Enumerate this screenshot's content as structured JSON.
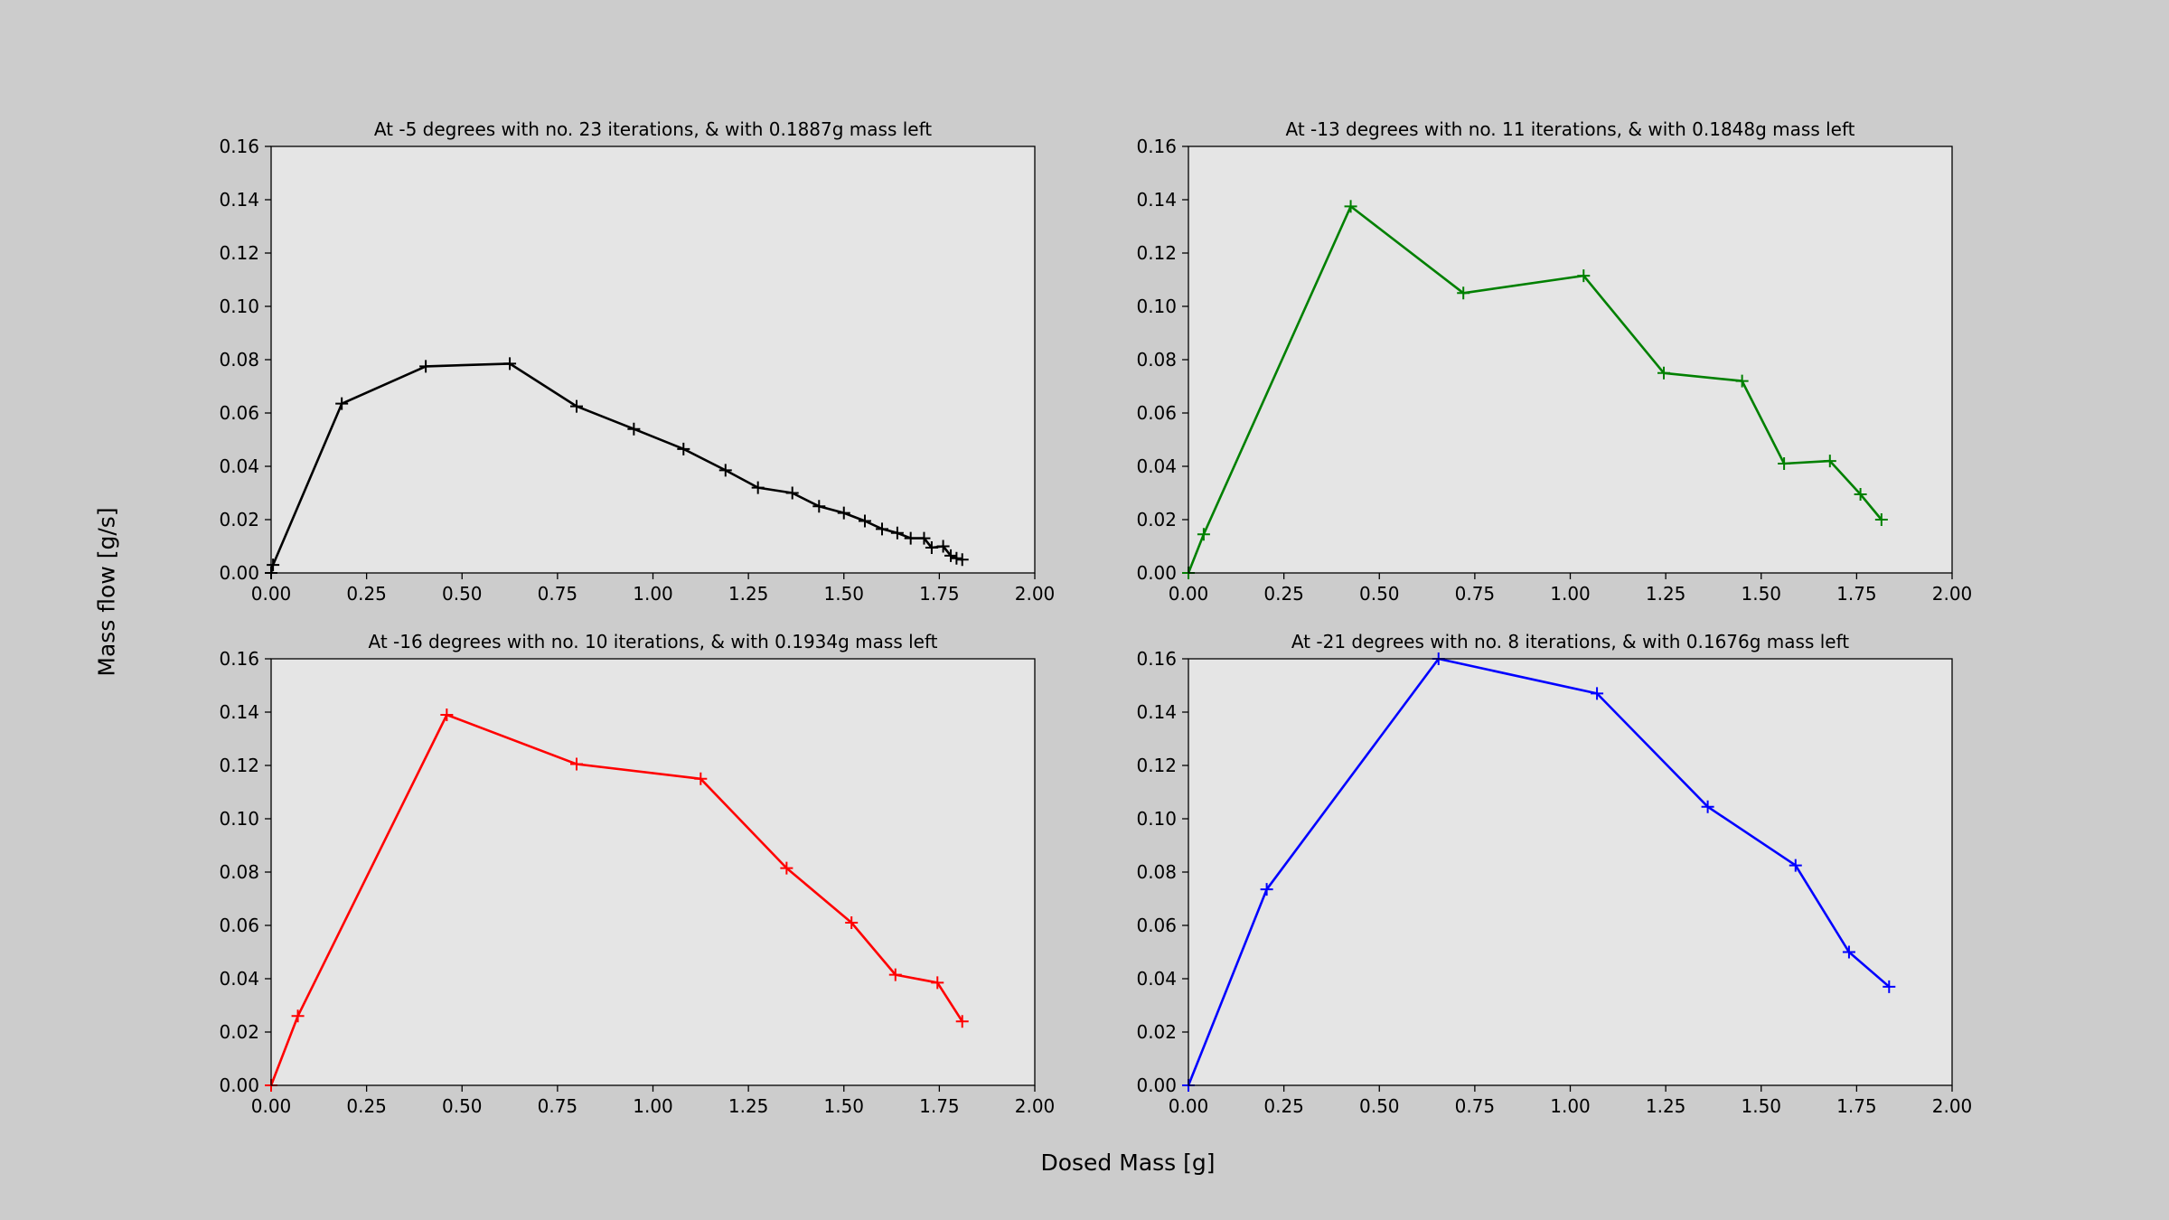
{
  "figure": {
    "xlabel": "Dosed Mass [g]",
    "ylabel": "Mass flow [g/s]",
    "background": "#cccccc",
    "axes_background": "#e5e5e5"
  },
  "chart_data": [
    {
      "type": "line",
      "title": "At -5 degrees with no. 23 iterations, & with 0.1887g mass left",
      "xlim": [
        0,
        2.0
      ],
      "ylim": [
        0,
        0.16
      ],
      "xticks": [
        "0.00",
        "0.25",
        "0.50",
        "0.75",
        "1.00",
        "1.25",
        "1.50",
        "1.75",
        "2.00"
      ],
      "yticks": [
        "0.00",
        "0.02",
        "0.04",
        "0.06",
        "0.08",
        "0.10",
        "0.12",
        "0.14",
        "0.16"
      ],
      "marker": "+",
      "color": "#000000",
      "x": [
        0.0,
        0.005,
        0.185,
        0.405,
        0.625,
        0.8,
        0.95,
        1.08,
        1.19,
        1.275,
        1.365,
        1.435,
        1.5,
        1.555,
        1.6,
        1.64,
        1.675,
        1.71,
        1.73,
        1.76,
        1.78,
        1.795,
        1.81
      ],
      "y": [
        0.0,
        0.003,
        0.0635,
        0.0775,
        0.0785,
        0.0625,
        0.054,
        0.0465,
        0.0385,
        0.032,
        0.03,
        0.025,
        0.0225,
        0.0195,
        0.0165,
        0.015,
        0.013,
        0.013,
        0.0095,
        0.01,
        0.0065,
        0.0055,
        0.005
      ]
    },
    {
      "type": "line",
      "title": "At -13 degrees with no. 11 iterations, & with 0.1848g mass left",
      "xlim": [
        0,
        2.0
      ],
      "ylim": [
        0,
        0.16
      ],
      "xticks": [
        "0.00",
        "0.25",
        "0.50",
        "0.75",
        "1.00",
        "1.25",
        "1.50",
        "1.75",
        "2.00"
      ],
      "yticks": [
        "0.00",
        "0.02",
        "0.04",
        "0.06",
        "0.08",
        "0.10",
        "0.12",
        "0.14",
        "0.16"
      ],
      "marker": "+",
      "color": "#008000",
      "x": [
        0.0,
        0.04,
        0.425,
        0.72,
        1.035,
        1.245,
        1.45,
        1.56,
        1.68,
        1.76,
        1.815
      ],
      "y": [
        0.0,
        0.0145,
        0.1375,
        0.105,
        0.1115,
        0.075,
        0.072,
        0.041,
        0.042,
        0.0295,
        0.02
      ]
    },
    {
      "type": "line",
      "title": "At -16 degrees with no. 10 iterations, & with 0.1934g mass left",
      "xlim": [
        0,
        2.0
      ],
      "ylim": [
        0,
        0.16
      ],
      "xticks": [
        "0.00",
        "0.25",
        "0.50",
        "0.75",
        "1.00",
        "1.25",
        "1.50",
        "1.75",
        "2.00"
      ],
      "yticks": [
        "0.00",
        "0.02",
        "0.04",
        "0.06",
        "0.08",
        "0.10",
        "0.12",
        "0.14",
        "0.16"
      ],
      "marker": "+",
      "color": "#ff0000",
      "x": [
        0.0,
        0.07,
        0.46,
        0.8,
        1.125,
        1.35,
        1.52,
        1.635,
        1.745,
        1.81
      ],
      "y": [
        0.0,
        0.026,
        0.139,
        0.1205,
        0.115,
        0.0815,
        0.061,
        0.0415,
        0.0385,
        0.024
      ]
    },
    {
      "type": "line",
      "title": "At -21 degrees with no. 8 iterations, & with 0.1676g mass left",
      "xlim": [
        0,
        2.0
      ],
      "ylim": [
        0,
        0.16
      ],
      "xticks": [
        "0.00",
        "0.25",
        "0.50",
        "0.75",
        "1.00",
        "1.25",
        "1.50",
        "1.75",
        "2.00"
      ],
      "yticks": [
        "0.00",
        "0.02",
        "0.04",
        "0.06",
        "0.08",
        "0.10",
        "0.12",
        "0.14",
        "0.16"
      ],
      "marker": "+",
      "color": "#0000ff",
      "x": [
        0.0,
        0.205,
        0.655,
        1.07,
        1.36,
        1.59,
        1.73,
        1.835
      ],
      "y": [
        0.0,
        0.0735,
        0.16,
        0.147,
        0.1045,
        0.0825,
        0.05,
        0.037
      ]
    }
  ]
}
